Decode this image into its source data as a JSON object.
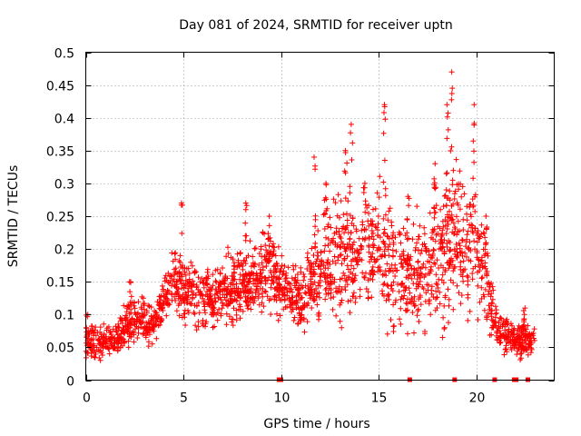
{
  "chart_data": {
    "type": "scatter",
    "title": "Day 081 of 2024, SRMTID for receiver uptn",
    "xlabel": "GPS time / hours",
    "ylabel": "SRMTID / TECUs",
    "xlim": [
      0,
      24
    ],
    "ylim": [
      0,
      0.5
    ],
    "x_ticks": [
      0,
      5,
      10,
      15,
      20
    ],
    "x_tick_labels": [
      "0",
      "5",
      "10",
      "15",
      "20"
    ],
    "y_ticks": [
      0,
      0.05,
      0.1,
      0.15,
      0.2,
      0.25,
      0.3,
      0.35,
      0.4,
      0.45,
      0.5
    ],
    "y_tick_labels": [
      "0",
      "0.05",
      "0.1",
      "0.15",
      "0.2",
      "0.25",
      "0.3",
      "0.35",
      "0.4",
      "0.45",
      "0.5"
    ],
    "grid": true,
    "marker": "+",
    "color": "#ff0000",
    "zero_value_times": [
      9.9,
      10.0,
      16.6,
      18.9,
      20.95,
      21.95,
      22.05,
      22.65
    ],
    "envelope": {
      "description": "median trend and spread of the dense SRMTID point cloud by hour",
      "x": [
        0.0,
        0.5,
        1.0,
        1.5,
        2.0,
        2.5,
        3.0,
        3.5,
        4.0,
        4.5,
        5.0,
        5.5,
        6.0,
        6.5,
        7.0,
        7.5,
        8.0,
        8.5,
        9.0,
        9.5,
        10.0,
        10.5,
        11.0,
        11.5,
        12.0,
        12.5,
        13.0,
        13.5,
        14.0,
        14.5,
        15.0,
        15.5,
        16.0,
        16.5,
        17.0,
        17.5,
        18.0,
        18.5,
        19.0,
        19.5,
        20.0,
        20.5,
        21.0,
        21.5,
        22.0,
        22.5,
        23.0
      ],
      "median": [
        0.05,
        0.06,
        0.06,
        0.06,
        0.08,
        0.09,
        0.09,
        0.08,
        0.12,
        0.15,
        0.14,
        0.13,
        0.13,
        0.12,
        0.13,
        0.14,
        0.15,
        0.15,
        0.16,
        0.17,
        0.15,
        0.13,
        0.12,
        0.14,
        0.17,
        0.18,
        0.19,
        0.18,
        0.2,
        0.19,
        0.2,
        0.18,
        0.17,
        0.15,
        0.16,
        0.17,
        0.18,
        0.2,
        0.22,
        0.19,
        0.2,
        0.14,
        0.08,
        0.07,
        0.06,
        0.06,
        0.06
      ],
      "spread": [
        0.03,
        0.03,
        0.025,
        0.025,
        0.035,
        0.035,
        0.035,
        0.03,
        0.04,
        0.05,
        0.05,
        0.05,
        0.05,
        0.05,
        0.05,
        0.06,
        0.06,
        0.06,
        0.07,
        0.07,
        0.06,
        0.05,
        0.05,
        0.06,
        0.08,
        0.09,
        0.1,
        0.1,
        0.1,
        0.1,
        0.1,
        0.1,
        0.09,
        0.08,
        0.09,
        0.1,
        0.11,
        0.12,
        0.12,
        0.11,
        0.1,
        0.08,
        0.03,
        0.03,
        0.025,
        0.03,
        0.02
      ]
    },
    "peaks": [
      {
        "x": 0.1,
        "y": 0.1
      },
      {
        "x": 2.3,
        "y": 0.15
      },
      {
        "x": 4.9,
        "y": 0.27
      },
      {
        "x": 8.2,
        "y": 0.27
      },
      {
        "x": 9.4,
        "y": 0.25
      },
      {
        "x": 11.7,
        "y": 0.34
      },
      {
        "x": 12.3,
        "y": 0.3
      },
      {
        "x": 13.3,
        "y": 0.35
      },
      {
        "x": 13.6,
        "y": 0.39
      },
      {
        "x": 14.3,
        "y": 0.3
      },
      {
        "x": 15.3,
        "y": 0.42
      },
      {
        "x": 16.5,
        "y": 0.28
      },
      {
        "x": 17.9,
        "y": 0.33
      },
      {
        "x": 18.5,
        "y": 0.42
      },
      {
        "x": 18.75,
        "y": 0.47
      },
      {
        "x": 19.9,
        "y": 0.42
      },
      {
        "x": 20.5,
        "y": 0.25
      },
      {
        "x": 22.5,
        "y": 0.11
      }
    ]
  }
}
